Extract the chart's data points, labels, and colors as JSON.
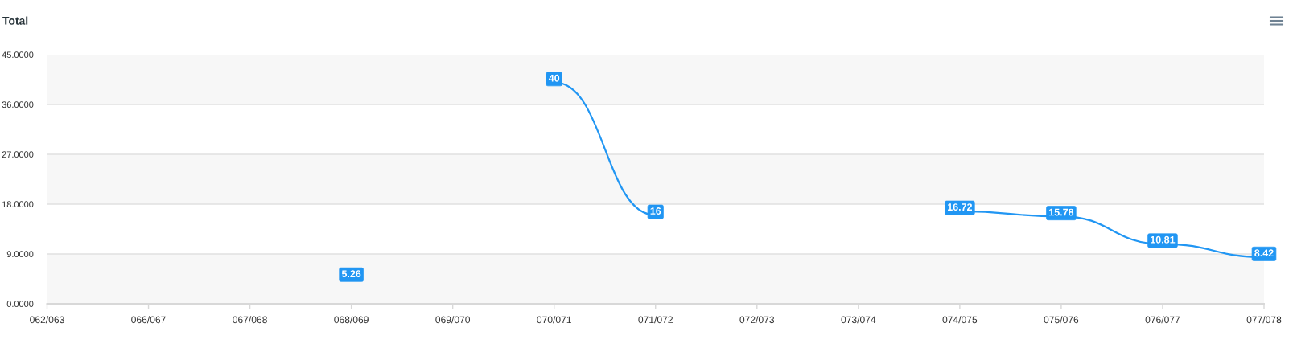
{
  "chart_data": {
    "type": "line",
    "title": "Total",
    "categories": [
      "062/063",
      "066/067",
      "067/068",
      "068/069",
      "069/070",
      "070/071",
      "071/072",
      "072/073",
      "073/074",
      "074/075",
      "075/076",
      "076/077",
      "077/078"
    ],
    "series": [
      {
        "color": "#2196f3",
        "marker": "none",
        "values": [
          null,
          null,
          null,
          5.26,
          null,
          40,
          16,
          null,
          null,
          16.72,
          15.78,
          10.81,
          8.42
        ]
      }
    ],
    "ylim": [
      0,
      45
    ],
    "yticks": [
      {
        "value": 0,
        "label": "0.0000"
      },
      {
        "value": 9,
        "label": "9.0000"
      },
      {
        "value": 18,
        "label": "18.0000"
      },
      {
        "value": 27,
        "label": "27.0000"
      },
      {
        "value": 36,
        "label": "36.0000"
      },
      {
        "value": 45,
        "label": "45.0000"
      }
    ],
    "grid": "y",
    "bands": [
      {
        "axis": "y",
        "from": 0,
        "to": 9,
        "color": "#f7f7f7"
      },
      {
        "axis": "y",
        "from": 18,
        "to": 27,
        "color": "#f7f7f7"
      },
      {
        "axis": "y",
        "from": 36,
        "to": 45,
        "color": "#f7f7f7"
      }
    ],
    "data_labels": true
  }
}
